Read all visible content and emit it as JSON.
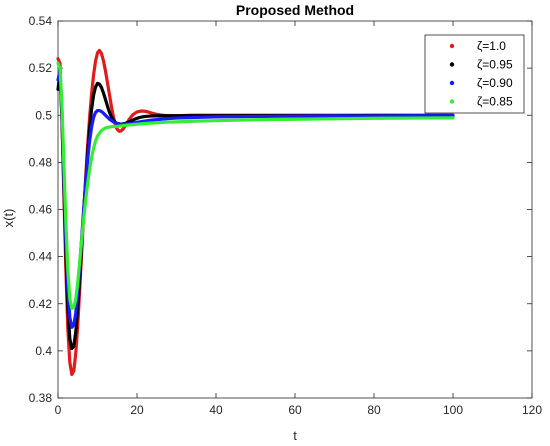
{
  "chart_data": {
    "type": "line",
    "title": "Proposed Method",
    "xlabel": "t",
    "ylabel": "x(t)",
    "xlim": [
      0,
      120
    ],
    "ylim": [
      0.38,
      0.54
    ],
    "xticks": [
      0,
      20,
      40,
      60,
      80,
      100,
      120
    ],
    "yticks": [
      0.38,
      0.4,
      0.42,
      0.44,
      0.46,
      0.48,
      0.5,
      0.52,
      0.54
    ],
    "xtick_labels": [
      "0",
      "20",
      "40",
      "60",
      "80",
      "100",
      "120"
    ],
    "ytick_labels": [
      "0.38",
      "0.4",
      "0.42",
      "0.44",
      "0.46",
      "0.48",
      "0.5",
      "0.52",
      "0.54"
    ],
    "grid": false,
    "legend_position": "top-right",
    "series": [
      {
        "name": "ζ=1.0",
        "color": "#e31a1c",
        "x": [
          0,
          0.5,
          1,
          1.5,
          2,
          2.5,
          3,
          3.5,
          4,
          4.5,
          5,
          5.5,
          6,
          6.5,
          7,
          7.5,
          8,
          8.5,
          9,
          9.5,
          10,
          10.5,
          11,
          11.5,
          12,
          12.5,
          13,
          13.5,
          14,
          14.5,
          15,
          15.5,
          16,
          16.5,
          17,
          17.5,
          18,
          19,
          20,
          21,
          22,
          23,
          24,
          25,
          26,
          27,
          28,
          30,
          32,
          34,
          36,
          38,
          40,
          45,
          50,
          60,
          70,
          80,
          90,
          100
        ],
        "y": [
          0.524,
          0.522,
          0.498,
          0.466,
          0.434,
          0.409,
          0.395,
          0.39,
          0.3915,
          0.399,
          0.411,
          0.426,
          0.442,
          0.458,
          0.473,
          0.487,
          0.499,
          0.509,
          0.517,
          0.523,
          0.5265,
          0.5275,
          0.5262,
          0.5232,
          0.519,
          0.514,
          0.509,
          0.504,
          0.4995,
          0.496,
          0.494,
          0.4932,
          0.4934,
          0.4942,
          0.4955,
          0.4968,
          0.4982,
          0.5003,
          0.5014,
          0.5018,
          0.5017,
          0.5013,
          0.5008,
          0.5004,
          0.5001,
          0.4999,
          0.4998,
          0.4998,
          0.4999,
          0.5,
          0.5,
          0.5,
          0.5,
          0.5,
          0.5,
          0.5,
          0.5,
          0.5,
          0.5,
          0.5
        ]
      },
      {
        "name": "ζ=0.95",
        "color": "#000000",
        "x": [
          0,
          0.5,
          1,
          1.5,
          2,
          2.5,
          3,
          3.5,
          4,
          4.5,
          5,
          5.5,
          6,
          6.5,
          7,
          7.5,
          8,
          8.5,
          9,
          9.5,
          10,
          10.5,
          11,
          11.5,
          12,
          12.5,
          13,
          13.5,
          14,
          14.5,
          15,
          16,
          17,
          18,
          19,
          20,
          21,
          22,
          24,
          26,
          28,
          30,
          35,
          40,
          50,
          60,
          70,
          80,
          90,
          100
        ],
        "y": [
          0.511,
          0.518,
          0.499,
          0.469,
          0.441,
          0.418,
          0.405,
          0.401,
          0.402,
          0.408,
          0.418,
          0.431,
          0.445,
          0.459,
          0.472,
          0.484,
          0.4945,
          0.5025,
          0.5085,
          0.512,
          0.5135,
          0.5132,
          0.5118,
          0.5095,
          0.5068,
          0.504,
          0.5014,
          0.4994,
          0.498,
          0.497,
          0.4965,
          0.4962,
          0.4965,
          0.4972,
          0.498,
          0.4987,
          0.4992,
          0.4995,
          0.4997,
          0.4998,
          0.4998,
          0.4998,
          0.4998,
          0.4998,
          0.4998,
          0.4998,
          0.4998,
          0.4999,
          0.4999,
          0.4999
        ]
      },
      {
        "name": "ζ=0.90",
        "color": "#1a1aff",
        "x": [
          0,
          0.5,
          1,
          1.5,
          2,
          2.5,
          3,
          3.5,
          4,
          4.5,
          5,
          5.5,
          6,
          6.5,
          7,
          7.5,
          8,
          8.5,
          9,
          9.5,
          10,
          10.5,
          11,
          11.5,
          12,
          13,
          14,
          15,
          16,
          17,
          18,
          19,
          20,
          22,
          24,
          26,
          28,
          30,
          35,
          40,
          50,
          60,
          70,
          80,
          90,
          100
        ],
        "y": [
          0.515,
          0.519,
          0.502,
          0.474,
          0.447,
          0.426,
          0.414,
          0.41,
          0.411,
          0.416,
          0.425,
          0.436,
          0.448,
          0.46,
          0.471,
          0.481,
          0.489,
          0.495,
          0.499,
          0.5012,
          0.502,
          0.502,
          0.5016,
          0.5009,
          0.5,
          0.4984,
          0.4972,
          0.4965,
          0.4962,
          0.4962,
          0.4964,
          0.4967,
          0.497,
          0.4975,
          0.498,
          0.4983,
          0.4986,
          0.4988,
          0.4991,
          0.4993,
          0.4995,
          0.4996,
          0.4997,
          0.4997,
          0.4998,
          0.4998
        ]
      },
      {
        "name": "ζ=0.85",
        "color": "#33ee33",
        "x": [
          0,
          0.5,
          1,
          1.5,
          2,
          2.5,
          3,
          3.5,
          4,
          4.5,
          5,
          5.5,
          6,
          6.5,
          7,
          7.5,
          8,
          8.5,
          9,
          9.5,
          10,
          11,
          12,
          13,
          14,
          15,
          16,
          17,
          18,
          20,
          22,
          24,
          26,
          28,
          30,
          35,
          40,
          45,
          50,
          60,
          70,
          80,
          90,
          100
        ],
        "y": [
          0.522,
          0.52,
          0.504,
          0.479,
          0.454,
          0.434,
          0.422,
          0.418,
          0.4185,
          0.422,
          0.429,
          0.438,
          0.447,
          0.456,
          0.464,
          0.471,
          0.477,
          0.482,
          0.486,
          0.489,
          0.4912,
          0.4935,
          0.4946,
          0.495,
          0.4952,
          0.4953,
          0.4955,
          0.4957,
          0.4959,
          0.4962,
          0.4965,
          0.4967,
          0.4969,
          0.4971,
          0.4972,
          0.4975,
          0.4977,
          0.4979,
          0.4981,
          0.4983,
          0.4985,
          0.4987,
          0.4988,
          0.4989
        ]
      }
    ]
  }
}
